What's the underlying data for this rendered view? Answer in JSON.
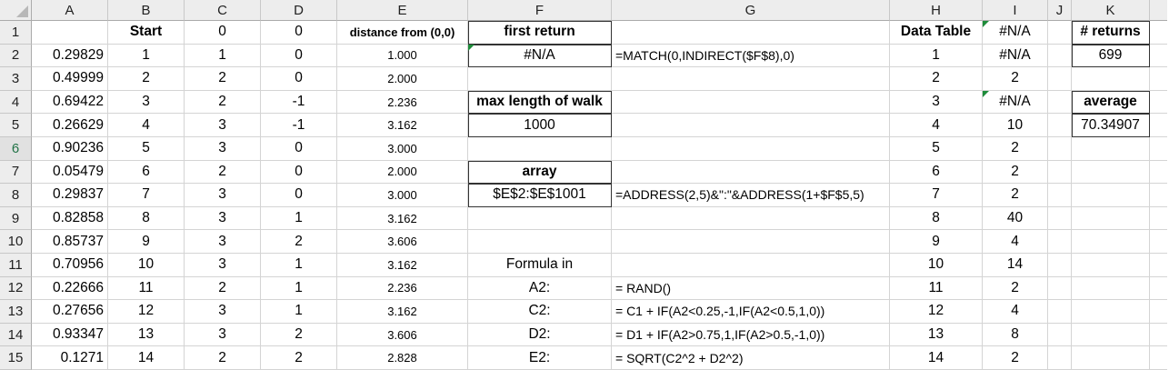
{
  "columns": [
    "A",
    "B",
    "C",
    "D",
    "E",
    "F",
    "G",
    "H",
    "I",
    "J",
    "K"
  ],
  "rows": [
    "1",
    "2",
    "3",
    "4",
    "5",
    "6",
    "7",
    "8",
    "9",
    "10",
    "11",
    "12",
    "13",
    "14",
    "15"
  ],
  "selected_row": "6",
  "col_a_values": [
    "",
    "0.29829",
    "0.49999",
    "0.69422",
    "0.26629",
    "0.90236",
    "0.05479",
    "0.29837",
    "0.82858",
    "0.85737",
    "0.70956",
    "0.22666",
    "0.27656",
    "0.93347",
    "0.1271"
  ],
  "col_b_values": [
    "Start",
    "1",
    "2",
    "3",
    "4",
    "5",
    "6",
    "7",
    "8",
    "9",
    "10",
    "11",
    "12",
    "13",
    "14"
  ],
  "col_c_values": [
    "0",
    "1",
    "2",
    "2",
    "3",
    "3",
    "2",
    "3",
    "3",
    "3",
    "3",
    "2",
    "3",
    "3",
    "2"
  ],
  "col_d_values": [
    "0",
    "0",
    "0",
    "-1",
    "-1",
    "0",
    "0",
    "0",
    "1",
    "2",
    "1",
    "1",
    "1",
    "2",
    "2"
  ],
  "col_e_values": [
    "distance from (0,0)",
    "1.000",
    "2.000",
    "2.236",
    "3.162",
    "3.000",
    "2.000",
    "3.000",
    "3.162",
    "3.606",
    "3.162",
    "2.236",
    "3.162",
    "3.606",
    "2.828"
  ],
  "col_f_values": [
    "first return",
    "#N/A",
    "",
    "max length of walk",
    "1000",
    "",
    "array",
    "$E$2:$E$1001",
    "",
    "",
    "Formula in",
    "A2:",
    "C2:",
    "D2:",
    "E2:"
  ],
  "col_g_values": [
    "",
    "=MATCH(0,INDIRECT($F$8),0)",
    "",
    "",
    "",
    "",
    "",
    "=ADDRESS(2,5)&\":\"&ADDRESS(1+$F$5,5)",
    "",
    "",
    "",
    "= RAND()",
    "= C1 + IF(A2<0.25,-1,IF(A2<0.5,1,0))",
    "= D1 + IF(A2>0.75,1,IF(A2>0.5,-1,0))",
    "= SQRT(C2^2 + D2^2)"
  ],
  "col_h_values": [
    "Data Table",
    "1",
    "2",
    "3",
    "4",
    "5",
    "6",
    "7",
    "8",
    "9",
    "10",
    "11",
    "12",
    "13",
    "14"
  ],
  "col_i_values": [
    "#N/A",
    "#N/A",
    "2",
    "#N/A",
    "10",
    "2",
    "2",
    "2",
    "40",
    "4",
    "14",
    "2",
    "4",
    "8",
    "2"
  ],
  "col_j_values": [
    "",
    "",
    "",
    "",
    "",
    "",
    "",
    "",
    "",
    "",
    "",
    "",
    "",
    "",
    ""
  ],
  "col_k_values": [
    "# returns",
    "699",
    "",
    "average",
    "70.34907",
    "",
    "",
    "",
    "",
    "",
    "",
    "",
    "",
    "",
    ""
  ]
}
